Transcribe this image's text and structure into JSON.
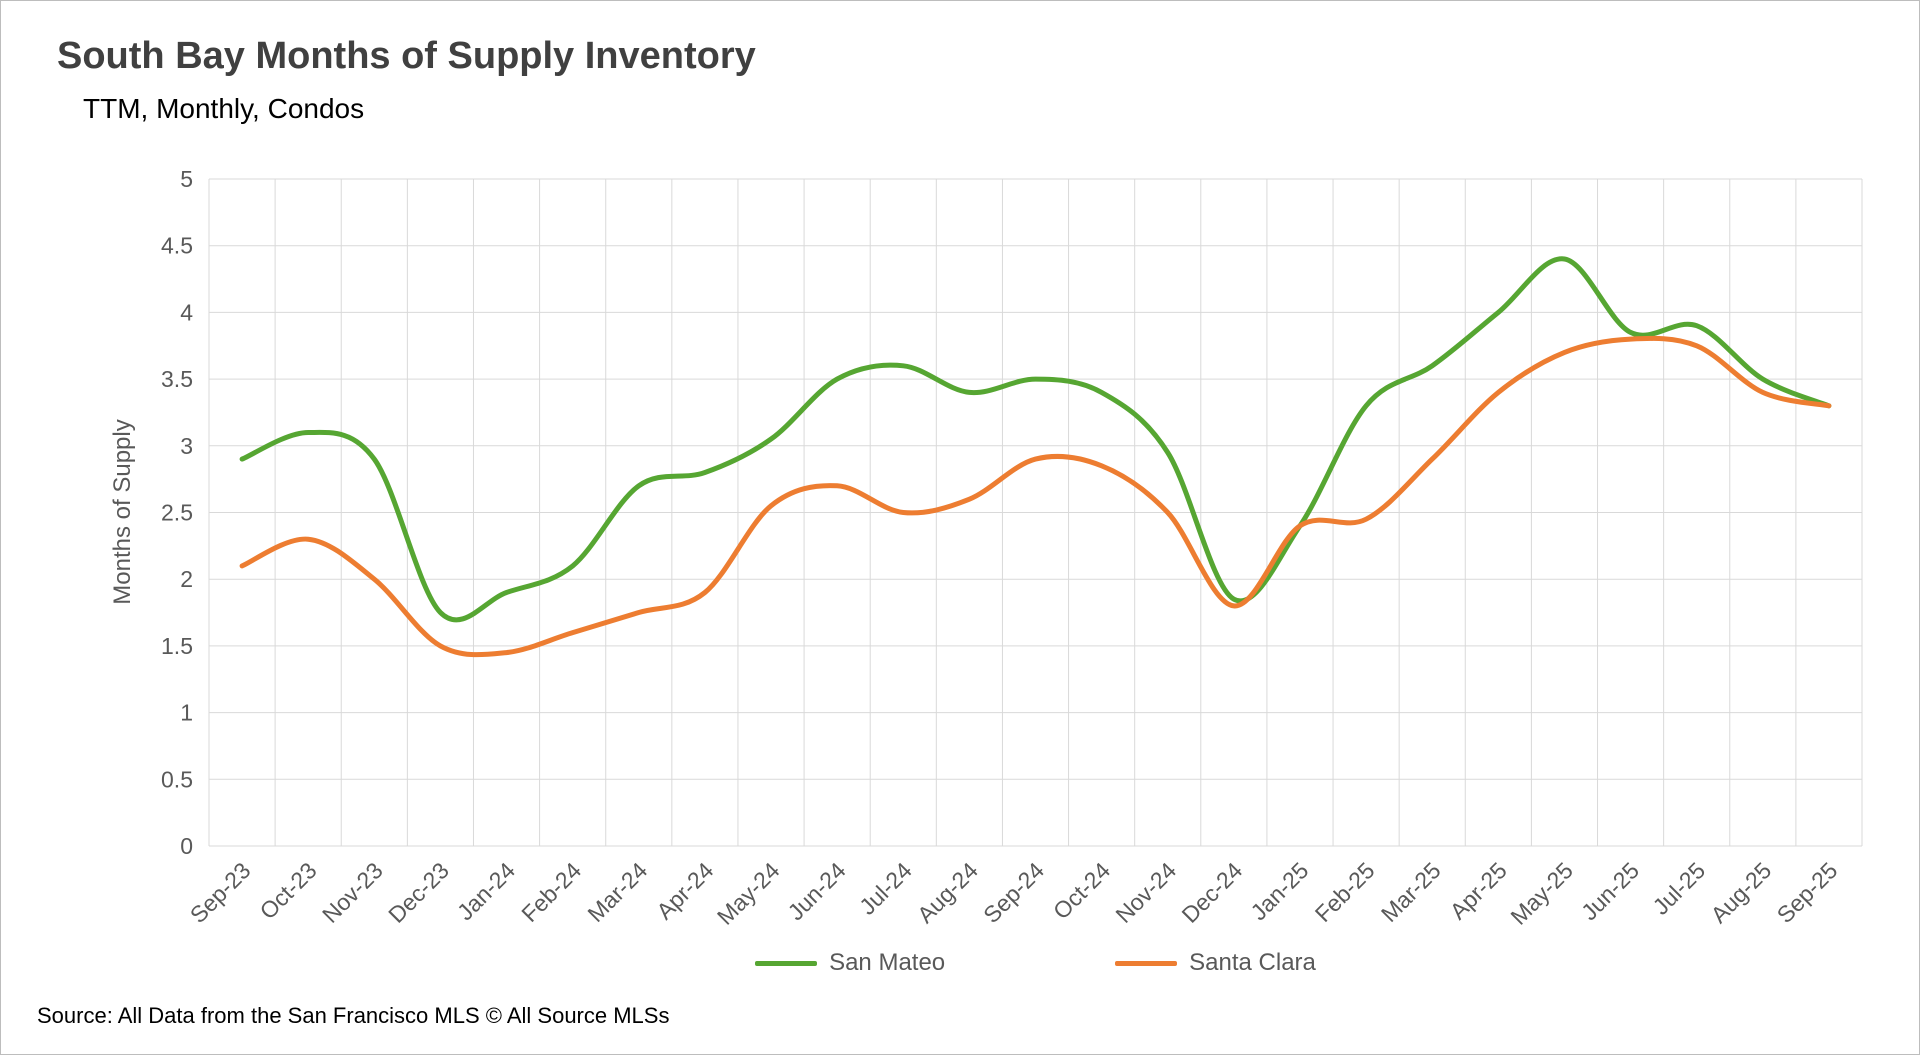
{
  "page": {
    "title": "South Bay Months of Supply Inventory",
    "subtitle": "TTM, Monthly, Condos",
    "source": "Source: All Data from the San Francisco MLS © All Source MLSs"
  },
  "chart_data": {
    "type": "line",
    "title": "South Bay Months of Supply Inventory",
    "subtitle": "TTM, Monthly, Condos",
    "xlabel": "",
    "ylabel": "Months of Supply",
    "ylim": [
      0,
      5
    ],
    "ytick_step": 0.5,
    "grid": true,
    "legend_position": "bottom",
    "line_style": "smooth",
    "categories": [
      "Sep-23",
      "Oct-23",
      "Nov-23",
      "Dec-23",
      "Jan-24",
      "Feb-24",
      "Mar-24",
      "Apr-24",
      "May-24",
      "Jun-24",
      "Jul-24",
      "Aug-24",
      "Sep-24",
      "Oct-24",
      "Nov-24",
      "Dec-24",
      "Jan-25",
      "Feb-25",
      "Mar-25",
      "Apr-25",
      "May-25",
      "Jun-25",
      "Jul-25",
      "Aug-25",
      "Sep-25"
    ],
    "series": [
      {
        "name": "San Mateo",
        "color": "#56A632",
        "values": [
          2.9,
          3.1,
          2.9,
          1.75,
          1.9,
          2.1,
          2.7,
          2.8,
          3.05,
          3.5,
          3.6,
          3.4,
          3.5,
          3.4,
          2.95,
          1.85,
          2.4,
          3.3,
          3.6,
          4.0,
          4.4,
          3.85,
          3.9,
          3.5,
          3.3
        ]
      },
      {
        "name": "Santa Clara",
        "color": "#ED7D31",
        "values": [
          2.1,
          2.3,
          2.0,
          1.5,
          1.45,
          1.6,
          1.75,
          1.9,
          2.55,
          2.7,
          2.5,
          2.6,
          2.9,
          2.85,
          2.5,
          1.8,
          2.4,
          2.45,
          2.9,
          3.4,
          3.7,
          3.8,
          3.75,
          3.4,
          3.3
        ]
      }
    ]
  }
}
